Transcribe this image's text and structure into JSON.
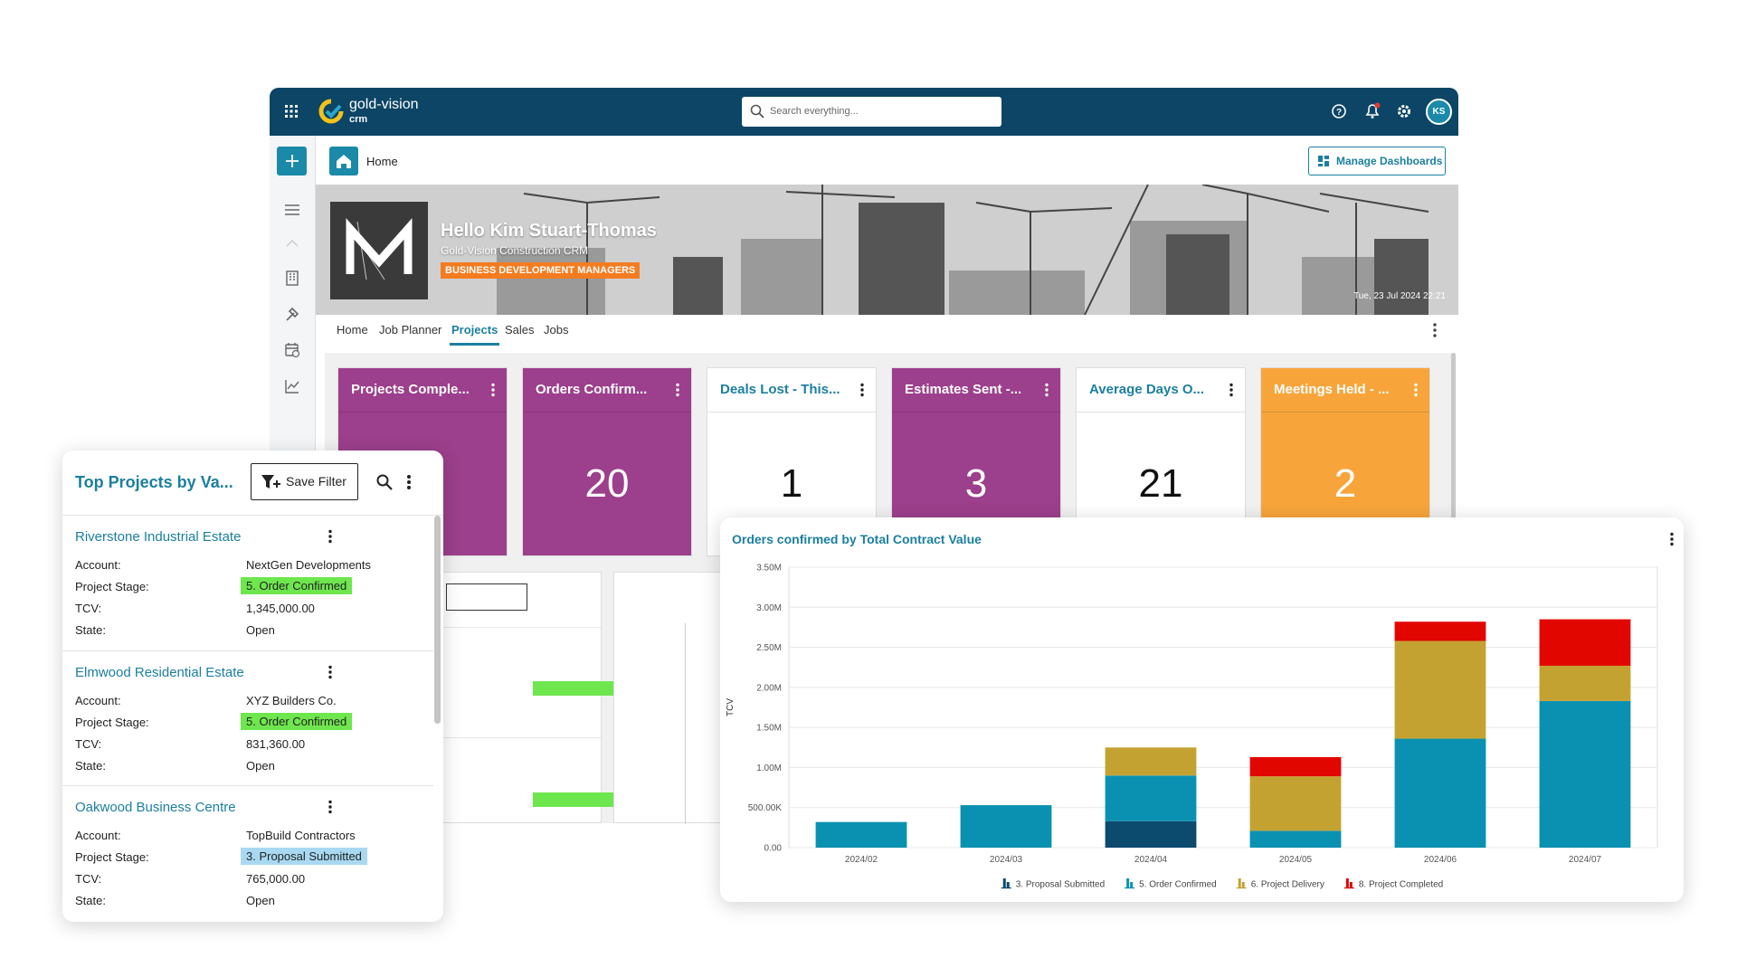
{
  "header": {
    "logo": "gold-vision",
    "logo_sub": "crm",
    "search": "Search everything...",
    "avatar": "KS"
  },
  "page_title": "Home",
  "manage_dashboards": "Manage Dashboards",
  "banner": {
    "greeting": "Hello Kim Stuart-Thomas",
    "subtitle": "Gold-Vision Construction CRM",
    "badge": "BUSINESS DEVELOPMENT MANAGERS",
    "date": "Tue, 23 Jul 2024 22:21"
  },
  "tabs": [
    "Home",
    "Job Planner",
    "Projects",
    "Sales",
    "Jobs"
  ],
  "active_tab": 2,
  "kpis": [
    {
      "title": "Projects Comple...",
      "color": "#9c3f8c"
    },
    {
      "title": "Orders Confirm...",
      "value": 20,
      "color": "#9c3f8c"
    },
    {
      "title": "Deals Lost - This...",
      "value": 1,
      "color": "#ffffff"
    },
    {
      "title": "Estimates Sent -...",
      "value": 3,
      "color": "#9c3f8c"
    },
    {
      "title": "Average Days O...",
      "value": 21,
      "color": "#ffffff"
    },
    {
      "title": "Meetings Held - ...",
      "value": 2,
      "color": "#f7a53b"
    }
  ],
  "project_list": {
    "title": "Top Projects by Va...",
    "save_filter": "Save Filter",
    "labels": [
      "Account:",
      "Project Stage:",
      "TCV:",
      "State:"
    ],
    "items": [
      {
        "name": "Riverstone Industrial Estate",
        "account": "NextGen Developments",
        "stage": "5. Order Confirmed",
        "stage_color": "#6ee64e",
        "tcv": "1,345,000.00",
        "state": "Open"
      },
      {
        "name": "Elmwood Residential Estate",
        "account": "XYZ Builders Co.",
        "stage": "5. Order Confirmed",
        "stage_color": "#6ee64e",
        "tcv": "831,360.00",
        "state": "Open"
      },
      {
        "name": "Oakwood Business Centre",
        "account": "TopBuild Contractors",
        "stage": "3. Proposal Submitted",
        "stage_color": "#a9d9f2",
        "tcv": "765,000.00",
        "state": "Open"
      }
    ]
  },
  "chart_data": {
    "type": "bar",
    "stacked": true,
    "title": "Orders confirmed by Total Contract Value",
    "y_label": "TCV",
    "categories": [
      "2024/02",
      "2024/03",
      "2024/04",
      "2024/05",
      "2024/06",
      "2024/07"
    ],
    "series": [
      {
        "name": "3. Proposal Submitted",
        "color": "#0c4a6e",
        "values": [
          null,
          null,
          330000,
          null,
          null,
          null
        ]
      },
      {
        "name": "5. Order Confirmed",
        "color": "#0a91b1",
        "values": [
          320000,
          530000,
          570000,
          210000,
          1360000,
          1830000
        ]
      },
      {
        "name": "6. Project Delivery",
        "color": "#c4a232",
        "values": [
          null,
          null,
          350000,
          680000,
          1220000,
          440000
        ]
      },
      {
        "name": "8. Project Completed",
        "color": "#e10600",
        "values": [
          null,
          null,
          null,
          240000,
          240000,
          580000
        ]
      }
    ],
    "ylim": [
      0,
      3500000
    ],
    "yticks": [
      {
        "value": 0,
        "label": "0.00"
      },
      {
        "value": 500000,
        "label": "500.00K"
      },
      {
        "value": 1000000,
        "label": "1.00M"
      },
      {
        "value": 1500000,
        "label": "1.50M"
      },
      {
        "value": 2000000,
        "label": "2.00M"
      },
      {
        "value": 2500000,
        "label": "2.50M"
      },
      {
        "value": 3000000,
        "label": "3.00M"
      },
      {
        "value": 3500000,
        "label": "3.50M"
      }
    ],
    "grid": true,
    "legend": "bottom"
  }
}
